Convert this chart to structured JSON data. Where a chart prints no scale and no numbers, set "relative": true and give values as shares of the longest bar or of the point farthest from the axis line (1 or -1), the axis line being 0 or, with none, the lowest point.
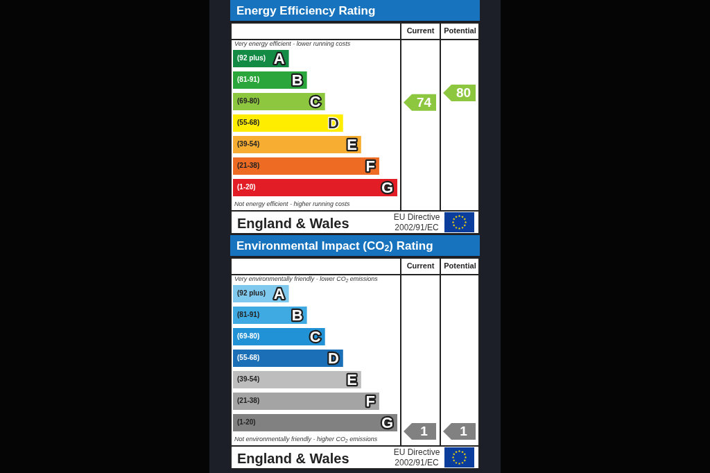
{
  "chart_data": [
    {
      "type": "bar",
      "orientation": "horizontal",
      "relative": true,
      "title": "Energy Efficiency Rating",
      "categories": [
        "A",
        "B",
        "C",
        "D",
        "E",
        "F",
        "G"
      ],
      "y2_categories": [
        "(92 plus)",
        "(81-91)",
        "(69-80)",
        "(55-68)",
        "(39-54)",
        "(21-38)",
        "(1-20)"
      ],
      "values": [
        0.34,
        0.45,
        0.56,
        0.67,
        0.78,
        0.89,
        1
      ],
      "colors": [
        "#138b45",
        "#2ba63b",
        "#8dc63f",
        "#ffed00",
        "#f6ad32",
        "#ee6b24",
        "#e21d26"
      ],
      "annotations": [
        "Very energy efficient - lower running costs",
        "Not energy efficient - higher running costs",
        "Current",
        "Potential",
        "74",
        "80",
        "England & Wales",
        "EU Directive 2002/91/EC"
      ]
    },
    {
      "type": "bar",
      "orientation": "horizontal",
      "relative": true,
      "title": "Environmental Impact (CO$_{2}$) Rating",
      "categories": [
        "A",
        "B",
        "C",
        "D",
        "E",
        "F",
        "G"
      ],
      "y2_categories": [
        "(92 plus)",
        "(81-91)",
        "(69-80)",
        "(55-68)",
        "(39-54)",
        "(21-38)",
        "(1-20)"
      ],
      "values": [
        0.34,
        0.45,
        0.56,
        0.67,
        0.78,
        0.89,
        1
      ],
      "colors": [
        "#7fc8ee",
        "#3fa9e1",
        "#2192d5",
        "#1b6fb7",
        "#bdbdbd",
        "#a4a4a4",
        "#818181"
      ],
      "annotations": [
        "Very environmentally friendly - lower CO$_{2}$ emissions",
        "Not environmentally friendly - higher CO$_{2}$ emissions",
        "Current",
        "Potential",
        "1",
        "1",
        "England & Wales",
        "EU Directive 2002/91/EC"
      ]
    }
  ]
}
